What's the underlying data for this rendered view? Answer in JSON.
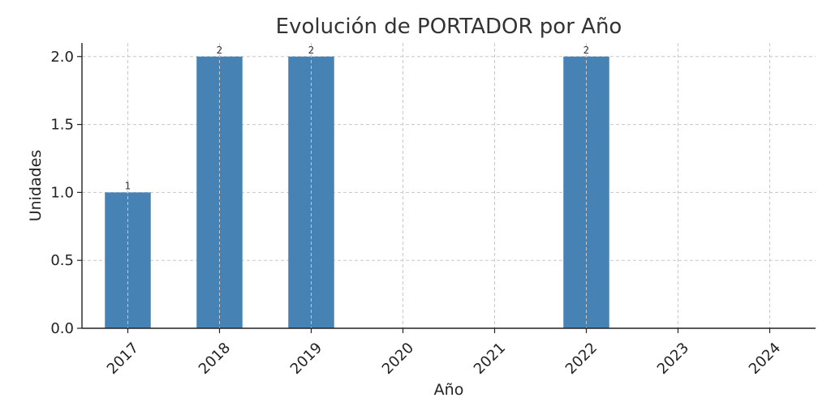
{
  "chart_data": {
    "type": "bar",
    "title": "Evolución de PORTADOR por Año",
    "xlabel": "Año",
    "ylabel": "Unidades",
    "categories": [
      "2017",
      "2018",
      "2019",
      "2020",
      "2021",
      "2022",
      "2023",
      "2024"
    ],
    "values": [
      1,
      2,
      2,
      0,
      0,
      2,
      0,
      0
    ],
    "data_labels": [
      "1",
      "2",
      "2",
      "",
      "",
      "2",
      "",
      ""
    ],
    "ylim": [
      0,
      2.1
    ],
    "yticks": [
      0.0,
      0.5,
      1.0,
      1.5,
      2.0
    ],
    "ytick_labels": [
      "0.0",
      "0.5",
      "1.0",
      "1.5",
      "2.0"
    ],
    "grid": true,
    "bar_color": "#4682b4"
  }
}
